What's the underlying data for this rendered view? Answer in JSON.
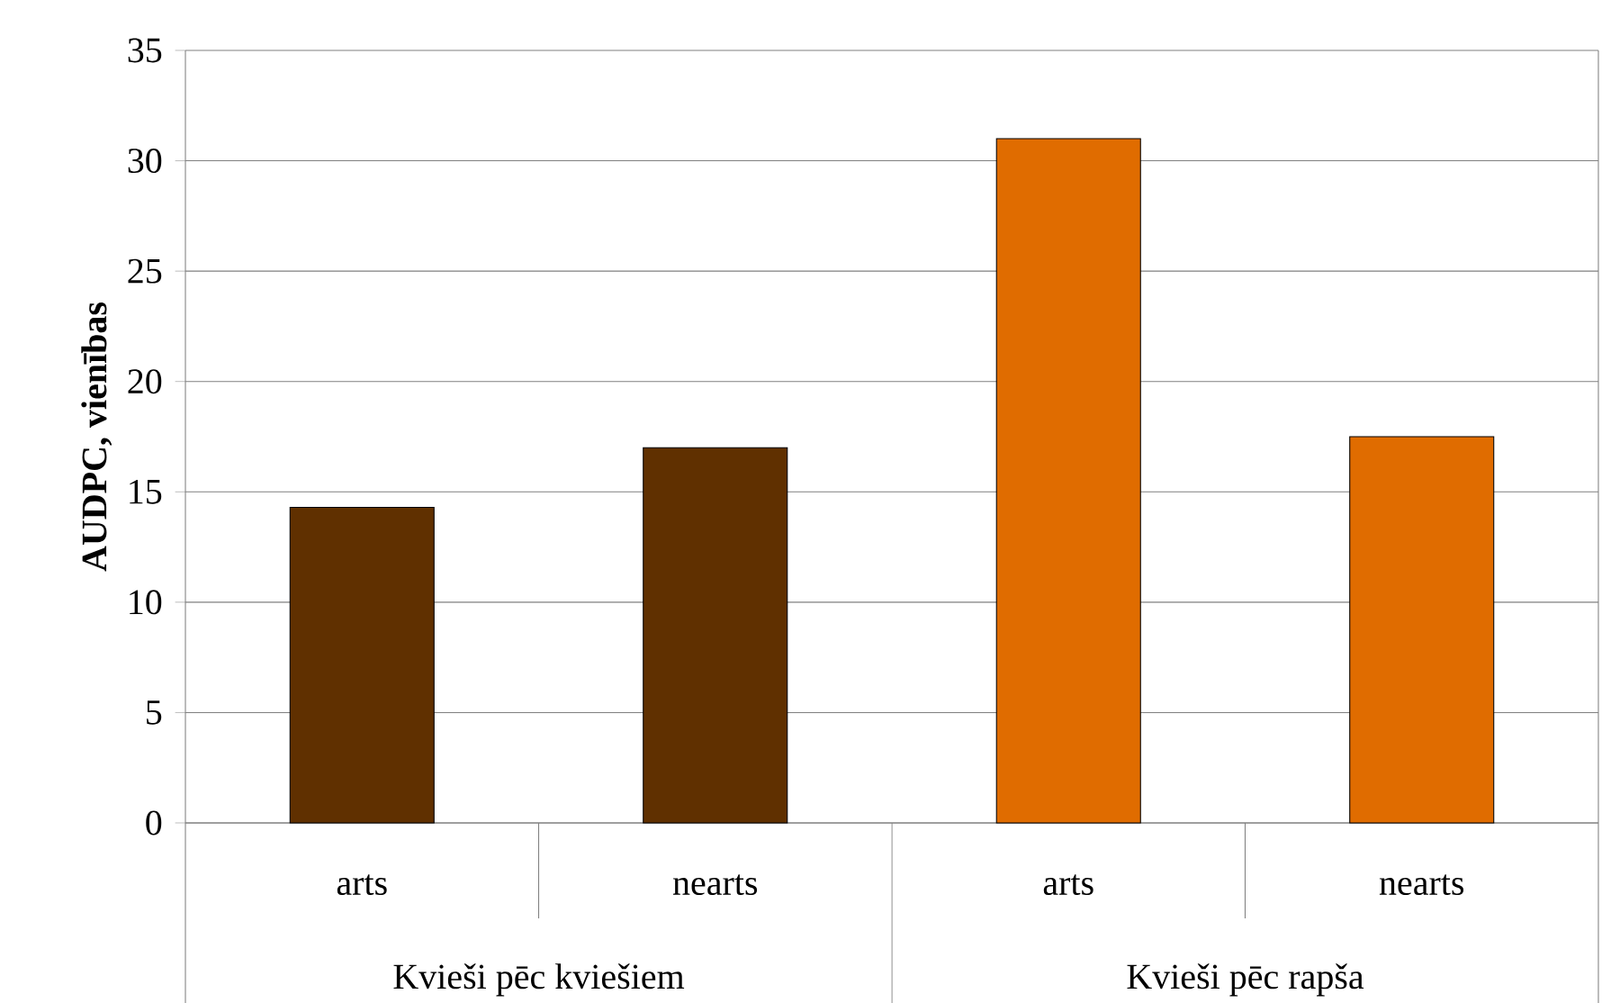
{
  "chart_data": {
    "type": "bar",
    "ylabel": "AUDPC, vienības",
    "categories": [
      "arts",
      "nearts",
      "arts",
      "nearts"
    ],
    "values": [
      14.3,
      17,
      31,
      17.5
    ],
    "colors": [
      "#603000",
      "#603000",
      "#e06c00",
      "#e06c00"
    ],
    "ylim": [
      0,
      35
    ],
    "yticks": [
      0,
      5,
      10,
      15,
      20,
      25,
      30,
      35
    ],
    "grid": "y",
    "annotations": [
      "Kvieši pēc kviešiem",
      "Kvieši pēc rapša"
    ]
  }
}
